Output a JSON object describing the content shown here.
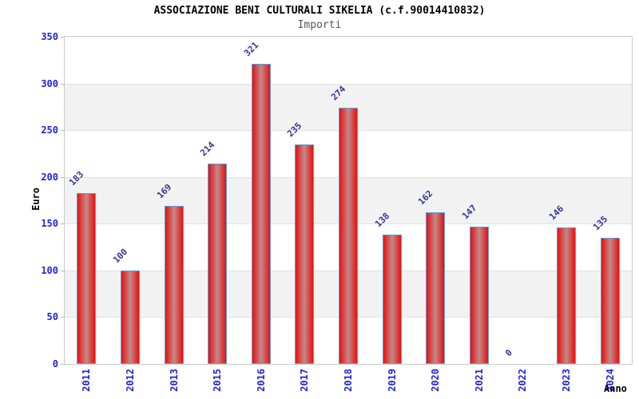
{
  "page": {
    "title": "ASSOCIAZIONE BENI CULTURALI SIKELIA (c.f.90014410832)",
    "subtitle": "Importi"
  },
  "chart_data": {
    "type": "bar",
    "title": "ASSOCIAZIONE BENI CULTURALI SIKELIA (c.f.90014410832)",
    "subtitle": "Importi",
    "categories": [
      "2011",
      "2012",
      "2013",
      "2015",
      "2016",
      "2017",
      "2018",
      "2019",
      "2020",
      "2021",
      "2022",
      "2023",
      "2024"
    ],
    "values": [
      183,
      100,
      169,
      214,
      321,
      235,
      274,
      138,
      162,
      147,
      0,
      146,
      135
    ],
    "xlabel": "Anno",
    "ylabel": "Euro",
    "ylim": [
      0,
      350
    ],
    "ytick_step": 50,
    "yticks": [
      0,
      50,
      100,
      150,
      200,
      250,
      300,
      350
    ],
    "grid": "alternating-horizontal-bands",
    "legend": "none",
    "value_label_rotation": -45,
    "xtick_rotation": -90,
    "colors": {
      "bar_edge": "#58a0e0",
      "bar_fill_edge": "#e8100e",
      "bar_fill_center": "#c18a8a",
      "tick_label": "#2222dd",
      "value_label": "#333399",
      "band_light": "#ffffff",
      "band_dark": "#f2f2f2",
      "plot_border": "#c9c9c9",
      "title_color": "#000000",
      "subtitle_color": "#555555"
    }
  }
}
